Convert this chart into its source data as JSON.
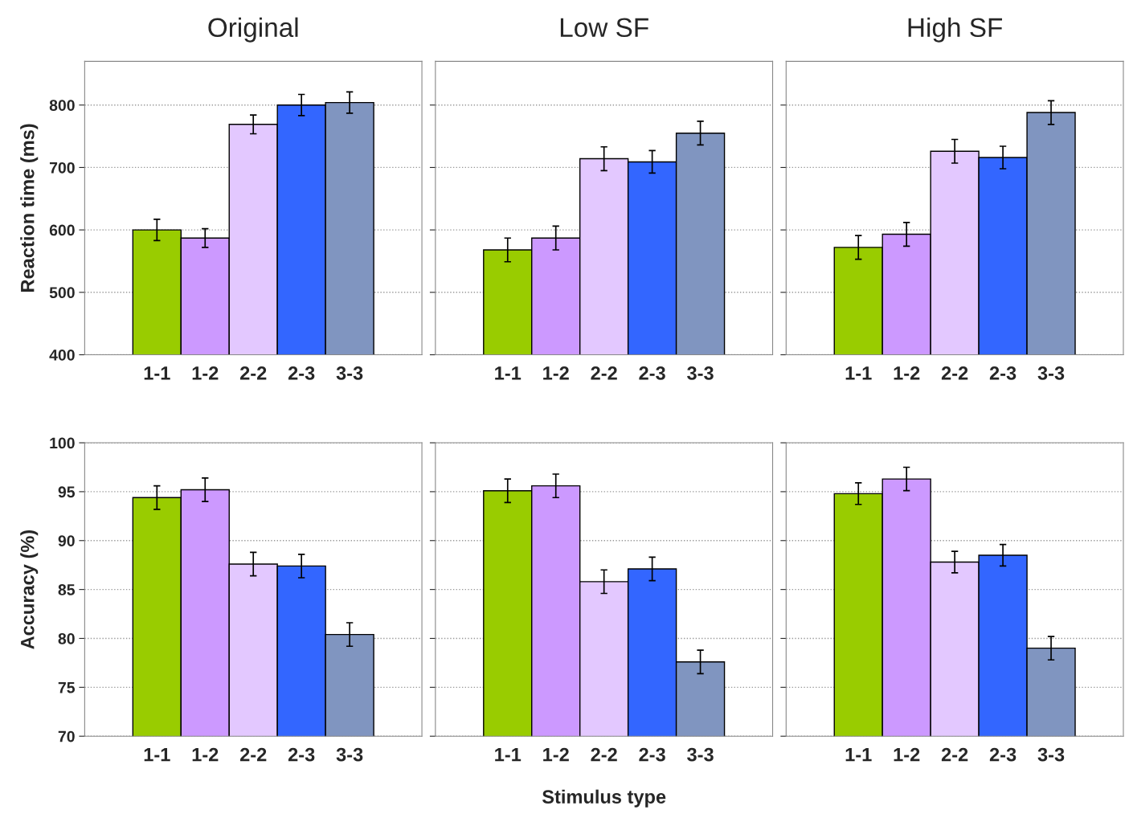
{
  "chart_data": [
    {
      "type": "bar",
      "title": "Original",
      "ylabel": "Reaction time (ms)",
      "categories": [
        "1-1",
        "1-2",
        "2-2",
        "2-3",
        "3-3"
      ],
      "values": [
        600,
        587,
        769,
        800,
        804
      ],
      "errors": [
        17,
        15,
        15,
        17,
        17
      ],
      "colors": [
        "#99cc00",
        "#cc99ff",
        "#e3c8ff",
        "#3366ff",
        "#8095c0"
      ],
      "ylim": [
        400,
        870
      ],
      "yticks": [
        400,
        500,
        600,
        700,
        800
      ],
      "grid": "y"
    },
    {
      "type": "bar",
      "title": "Low SF",
      "categories": [
        "1-1",
        "1-2",
        "2-2",
        "2-3",
        "3-3"
      ],
      "values": [
        568,
        587,
        714,
        709,
        755
      ],
      "errors": [
        19,
        19,
        19,
        18,
        19
      ],
      "colors": [
        "#99cc00",
        "#cc99ff",
        "#e3c8ff",
        "#3366ff",
        "#8095c0"
      ],
      "ylim": [
        400,
        870
      ],
      "yticks": [
        400,
        500,
        600,
        700,
        800
      ],
      "grid": "y",
      "tick_labels": "x"
    },
    {
      "type": "bar",
      "title": "High SF",
      "categories": [
        "1-1",
        "1-2",
        "2-2",
        "2-3",
        "3-3"
      ],
      "values": [
        572,
        593,
        726,
        716,
        788
      ],
      "errors": [
        19,
        19,
        19,
        18,
        19
      ],
      "colors": [
        "#99cc00",
        "#cc99ff",
        "#e3c8ff",
        "#3366ff",
        "#8095c0"
      ],
      "ylim": [
        400,
        870
      ],
      "yticks": [
        400,
        500,
        600,
        700,
        800
      ],
      "grid": "y",
      "tick_labels": "x"
    },
    {
      "type": "bar",
      "ylabel": "Accuracy (%)",
      "categories": [
        "1-1",
        "1-2",
        "2-2",
        "2-3",
        "3-3"
      ],
      "values": [
        94.4,
        95.2,
        87.6,
        87.4,
        80.4
      ],
      "errors": [
        1.2,
        1.2,
        1.2,
        1.2,
        1.2
      ],
      "colors": [
        "#99cc00",
        "#cc99ff",
        "#e3c8ff",
        "#3366ff",
        "#8095c0"
      ],
      "ylim": [
        70,
        100
      ],
      "yticks": [
        70,
        75,
        80,
        85,
        90,
        95,
        100
      ],
      "grid": "y"
    },
    {
      "type": "bar",
      "xlabel": "Stimulus type",
      "categories": [
        "1-1",
        "1-2",
        "2-2",
        "2-3",
        "3-3"
      ],
      "values": [
        95.1,
        95.6,
        85.8,
        87.1,
        77.6
      ],
      "errors": [
        1.2,
        1.2,
        1.2,
        1.2,
        1.2
      ],
      "colors": [
        "#99cc00",
        "#cc99ff",
        "#e3c8ff",
        "#3366ff",
        "#8095c0"
      ],
      "ylim": [
        70,
        100
      ],
      "yticks": [
        70,
        75,
        80,
        85,
        90,
        95,
        100
      ],
      "grid": "y",
      "tick_labels": "x"
    },
    {
      "type": "bar",
      "categories": [
        "1-1",
        "1-2",
        "2-2",
        "2-3",
        "3-3"
      ],
      "values": [
        94.8,
        96.3,
        87.8,
        88.5,
        79.0
      ],
      "errors": [
        1.1,
        1.2,
        1.1,
        1.1,
        1.2
      ],
      "colors": [
        "#99cc00",
        "#cc99ff",
        "#e3c8ff",
        "#3366ff",
        "#8095c0"
      ],
      "ylim": [
        70,
        100
      ],
      "yticks": [
        70,
        75,
        80,
        85,
        90,
        95,
        100
      ],
      "grid": "y",
      "tick_labels": "x"
    }
  ]
}
